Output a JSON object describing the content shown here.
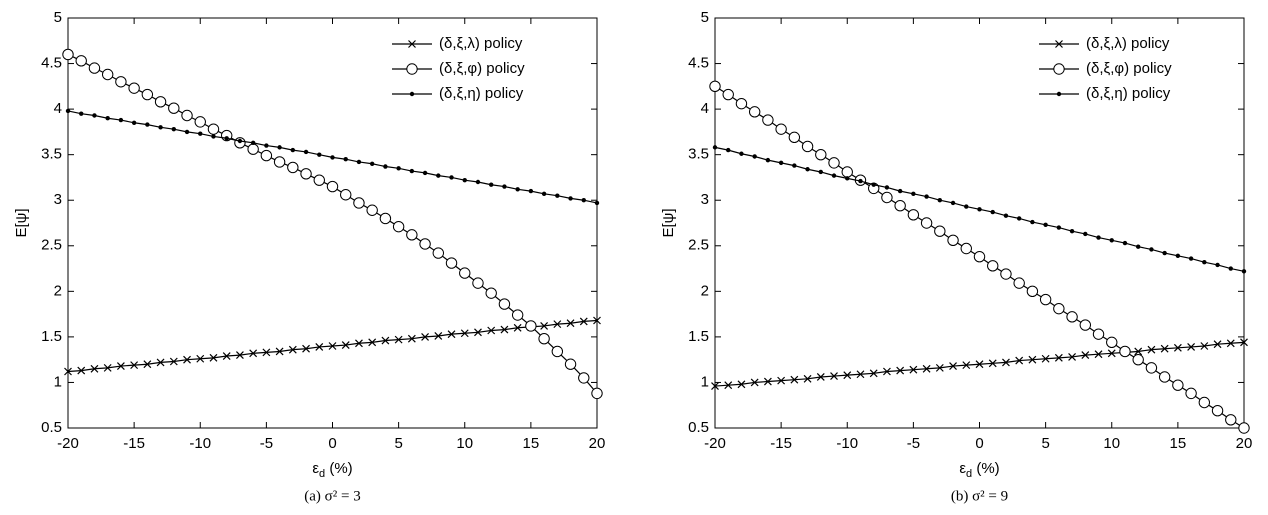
{
  "chart_data": [
    {
      "type": "line",
      "caption": "(a) σ² = 3",
      "ylabel": "E[ψ]",
      "xlabel": {
        "base": "ε",
        "subscript": "d",
        "suffix": " (%)"
      },
      "legend": "upper right",
      "grid": false,
      "xlim": [
        -20,
        20
      ],
      "xticks": [
        -20,
        -15,
        -10,
        -5,
        0,
        5,
        10,
        15,
        20
      ],
      "ylim": [
        0.5,
        5
      ],
      "yticks": [
        0.5,
        1,
        1.5,
        2,
        2.5,
        3,
        3.5,
        4,
        4.5,
        5
      ],
      "x": [
        -20,
        -19,
        -18,
        -17,
        -16,
        -15,
        -14,
        -13,
        -12,
        -11,
        -10,
        -9,
        -8,
        -7,
        -6,
        -5,
        -4,
        -3,
        -2,
        -1,
        0,
        1,
        2,
        3,
        4,
        5,
        6,
        7,
        8,
        9,
        10,
        11,
        12,
        13,
        14,
        15,
        16,
        17,
        18,
        19,
        20
      ],
      "series": [
        {
          "name": "(δ,ξ,λ) policy",
          "color": "#000000",
          "marker": "x",
          "values": [
            1.12,
            1.13,
            1.15,
            1.16,
            1.18,
            1.19,
            1.2,
            1.22,
            1.23,
            1.25,
            1.26,
            1.27,
            1.29,
            1.3,
            1.32,
            1.33,
            1.34,
            1.36,
            1.37,
            1.39,
            1.4,
            1.41,
            1.43,
            1.44,
            1.46,
            1.47,
            1.48,
            1.5,
            1.51,
            1.53,
            1.54,
            1.55,
            1.57,
            1.58,
            1.6,
            1.61,
            1.62,
            1.64,
            1.65,
            1.67,
            1.68
          ]
        },
        {
          "name": "(δ,ξ,φ) policy",
          "color": "#000000",
          "marker": "o",
          "values": [
            4.6,
            4.53,
            4.45,
            4.38,
            4.3,
            4.23,
            4.16,
            4.08,
            4.01,
            3.93,
            3.86,
            3.78,
            3.71,
            3.63,
            3.56,
            3.49,
            3.42,
            3.36,
            3.29,
            3.22,
            3.15,
            3.06,
            2.97,
            2.89,
            2.8,
            2.71,
            2.62,
            2.52,
            2.42,
            2.31,
            2.2,
            2.09,
            1.98,
            1.86,
            1.74,
            1.62,
            1.48,
            1.34,
            1.2,
            1.05,
            0.88
          ]
        },
        {
          "name": "(δ,ξ,η) policy",
          "color": "#000000",
          "marker": ".",
          "values": [
            3.98,
            3.95,
            3.93,
            3.9,
            3.88,
            3.85,
            3.83,
            3.8,
            3.78,
            3.75,
            3.73,
            3.7,
            3.68,
            3.65,
            3.63,
            3.6,
            3.58,
            3.55,
            3.53,
            3.5,
            3.47,
            3.45,
            3.42,
            3.4,
            3.37,
            3.35,
            3.32,
            3.3,
            3.27,
            3.25,
            3.22,
            3.2,
            3.17,
            3.15,
            3.12,
            3.1,
            3.07,
            3.05,
            3.02,
            3.0,
            2.97
          ]
        }
      ]
    },
    {
      "type": "line",
      "caption": "(b) σ² = 9",
      "ylabel": "E[ψ]",
      "xlabel": {
        "base": "ε",
        "subscript": "d",
        "suffix": " (%)"
      },
      "legend": "upper right",
      "grid": false,
      "xlim": [
        -20,
        20
      ],
      "xticks": [
        -20,
        -15,
        -10,
        -5,
        0,
        5,
        10,
        15,
        20
      ],
      "ylim": [
        0.5,
        5
      ],
      "yticks": [
        0.5,
        1,
        1.5,
        2,
        2.5,
        3,
        3.5,
        4,
        4.5,
        5
      ],
      "x": [
        -20,
        -19,
        -18,
        -17,
        -16,
        -15,
        -14,
        -13,
        -12,
        -11,
        -10,
        -9,
        -8,
        -7,
        -6,
        -5,
        -4,
        -3,
        -2,
        -1,
        0,
        1,
        2,
        3,
        4,
        5,
        6,
        7,
        8,
        9,
        10,
        11,
        12,
        13,
        14,
        15,
        16,
        17,
        18,
        19,
        20
      ],
      "series": [
        {
          "name": "(δ,ξ,λ) policy",
          "color": "#000000",
          "marker": "x",
          "values": [
            0.96,
            0.97,
            0.98,
            1.0,
            1.01,
            1.02,
            1.03,
            1.04,
            1.06,
            1.07,
            1.08,
            1.09,
            1.1,
            1.12,
            1.13,
            1.14,
            1.15,
            1.16,
            1.18,
            1.19,
            1.2,
            1.21,
            1.22,
            1.24,
            1.25,
            1.26,
            1.27,
            1.28,
            1.3,
            1.31,
            1.32,
            1.33,
            1.34,
            1.36,
            1.37,
            1.38,
            1.39,
            1.4,
            1.42,
            1.43,
            1.44
          ]
        },
        {
          "name": "(δ,ξ,φ) policy",
          "color": "#000000",
          "marker": "o",
          "values": [
            4.25,
            4.16,
            4.06,
            3.97,
            3.88,
            3.78,
            3.69,
            3.59,
            3.5,
            3.41,
            3.31,
            3.22,
            3.13,
            3.03,
            2.94,
            2.84,
            2.75,
            2.66,
            2.56,
            2.47,
            2.38,
            2.28,
            2.19,
            2.09,
            2.0,
            1.91,
            1.81,
            1.72,
            1.63,
            1.53,
            1.44,
            1.34,
            1.25,
            1.16,
            1.06,
            0.97,
            0.88,
            0.78,
            0.69,
            0.59,
            0.5
          ]
        },
        {
          "name": "(δ,ξ,η) policy",
          "color": "#000000",
          "marker": ".",
          "values": [
            3.58,
            3.55,
            3.51,
            3.48,
            3.44,
            3.41,
            3.38,
            3.34,
            3.31,
            3.27,
            3.24,
            3.21,
            3.17,
            3.14,
            3.1,
            3.07,
            3.04,
            3.0,
            2.97,
            2.93,
            2.9,
            2.87,
            2.83,
            2.8,
            2.76,
            2.73,
            2.7,
            2.66,
            2.63,
            2.59,
            2.56,
            2.53,
            2.49,
            2.46,
            2.42,
            2.39,
            2.36,
            2.32,
            2.29,
            2.25,
            2.22
          ]
        }
      ]
    }
  ]
}
